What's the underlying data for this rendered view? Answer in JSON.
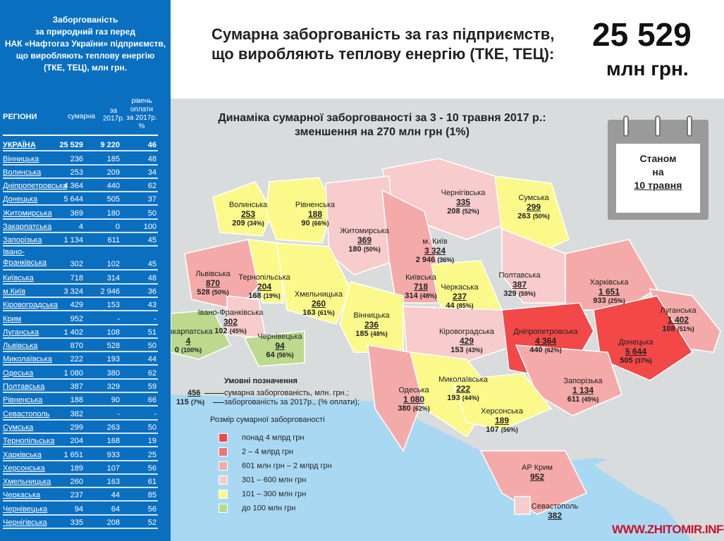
{
  "left_panel": {
    "title_lines": [
      "Заборгованість",
      "за природний газ перед",
      "НАК «Нафтогаз України» підприємств,",
      "що виробляють теплову енергію",
      "(ТКЕ, ТЕЦ), млн грн."
    ],
    "headers": {
      "region": "РЕГІОНИ",
      "total": "сумарна",
      "y2017": "за 2017р.",
      "paid_lines": [
        "рівень",
        "оплати",
        "за 2017р.",
        "%"
      ]
    },
    "rows": [
      {
        "region": "УКРАЇНА",
        "total": "25 529",
        "y2017": "9 220",
        "paid": "46"
      },
      {
        "region": "Вінницька",
        "total": "236",
        "y2017": "185",
        "paid": "48"
      },
      {
        "region": "Волинська",
        "total": "253",
        "y2017": "209",
        "paid": "34"
      },
      {
        "region": "Дніпропетровська",
        "total": "4 364",
        "y2017": "440",
        "paid": "62"
      },
      {
        "region": "Донецька",
        "total": "5 644",
        "y2017": "505",
        "paid": "37"
      },
      {
        "region": "Житомирська",
        "total": "369",
        "y2017": "180",
        "paid": "50"
      },
      {
        "region": "Закарпатська",
        "total": "4",
        "y2017": "0",
        "paid": "100"
      },
      {
        "region": "Запорізька",
        "total": "1 134",
        "y2017": "611",
        "paid": "45"
      },
      {
        "region": "Івано-Франківська",
        "total": "302",
        "y2017": "102",
        "paid": "45"
      },
      {
        "region": "Київська",
        "total": "718",
        "y2017": "314",
        "paid": "48"
      },
      {
        "region": "м.Київ",
        "total": "3 324",
        "y2017": "2 946",
        "paid": "36"
      },
      {
        "region": "Кіровоградська",
        "total": "429",
        "y2017": "153",
        "paid": "43"
      },
      {
        "region": "Крим",
        "total": "952",
        "y2017": "-",
        "paid": "-"
      },
      {
        "region": "Луганська",
        "total": "1 402",
        "y2017": "108",
        "paid": "51"
      },
      {
        "region": "Львівська",
        "total": "870",
        "y2017": "528",
        "paid": "50"
      },
      {
        "region": "Миколаївська",
        "total": "222",
        "y2017": "193",
        "paid": "44"
      },
      {
        "region": "Одеська",
        "total": "1 080",
        "y2017": "380",
        "paid": "62"
      },
      {
        "region": "Полтавська",
        "total": "387",
        "y2017": "329",
        "paid": "59"
      },
      {
        "region": "Рівненська",
        "total": "188",
        "y2017": "90",
        "paid": "66"
      },
      {
        "region": "Севастополь",
        "total": "382",
        "y2017": "-",
        "paid": "-"
      },
      {
        "region": "Сумська",
        "total": "299",
        "y2017": "263",
        "paid": "50"
      },
      {
        "region": "Тернопільська",
        "total": "204",
        "y2017": "168",
        "paid": "19"
      },
      {
        "region": "Харківська",
        "total": "1 651",
        "y2017": "933",
        "paid": "25"
      },
      {
        "region": "Херсонська",
        "total": "189",
        "y2017": "107",
        "paid": "56"
      },
      {
        "region": "Хмельницька",
        "total": "260",
        "y2017": "163",
        "paid": "61"
      },
      {
        "region": "Черкаська",
        "total": "237",
        "y2017": "44",
        "paid": "85"
      },
      {
        "region": "Чернівецька",
        "total": "94",
        "y2017": "64",
        "paid": "56"
      },
      {
        "region": "Чернігівська",
        "total": "335",
        "y2017": "208",
        "paid": "52"
      }
    ]
  },
  "header": {
    "title_lines": [
      "Сумарна заборгованість за газ підприємств,",
      "що виробляють теплову енергію (ТКЕ, ТЕЦ):"
    ],
    "total": "25 529",
    "unit": "млн грн."
  },
  "map": {
    "subtitle_lines": [
      "Динаміка сумарної заборгованості за 3 - 10 травня 2017 р.:",
      "зменшення на 270 млн грн (1%)"
    ],
    "calendar_lines": [
      "Станом",
      "на",
      "10 травня"
    ],
    "category_colors": [
      "#f24848",
      "#f27272",
      "#f5aaaa",
      "#f8cccc",
      "#fbf98a",
      "#bcd98e"
    ],
    "regions": [
      {
        "name": "Волинська",
        "total": "253",
        "y2017": "209",
        "pct": "(34%)",
        "cat": 4
      },
      {
        "name": "Рівненська",
        "total": "188",
        "y2017": "90",
        "pct": "(66%)",
        "cat": 4
      },
      {
        "name": "Чернігівська",
        "total": "335",
        "y2017": "208",
        "pct": "(52%)",
        "cat": 3
      },
      {
        "name": "Житомирська",
        "total": "369",
        "y2017": "180",
        "pct": "(50%)",
        "cat": 3
      },
      {
        "name": "м. Київ",
        "total": "3 324",
        "y2017": "2 946",
        "pct": "(36%)",
        "cat": 1
      },
      {
        "name": "Сумська",
        "total": "299",
        "y2017": "263",
        "pct": "(50%)",
        "cat": 4
      },
      {
        "name": "Львівська",
        "total": "870",
        "y2017": "528",
        "pct": "(50%)",
        "cat": 2
      },
      {
        "name": "Тернопільська",
        "total": "204",
        "y2017": "168",
        "pct": "(19%)",
        "cat": 4
      },
      {
        "name": "Хмельницька",
        "total": "260",
        "y2017": "163",
        "pct": "(61%)",
        "cat": 4
      },
      {
        "name": "Київська",
        "total": "718",
        "y2017": "314",
        "pct": "(48%)",
        "cat": 2
      },
      {
        "name": "Черкаська",
        "total": "237",
        "y2017": "44",
        "pct": "(85%)",
        "cat": 4
      },
      {
        "name": "Полтавська",
        "total": "387",
        "y2017": "329",
        "pct": "(59%)",
        "cat": 3
      },
      {
        "name": "Харківська",
        "total": "1 651",
        "y2017": "933",
        "pct": "(25%)",
        "cat": 2
      },
      {
        "name": "Луганська",
        "total": "1 402",
        "y2017": "108",
        "pct": "(51%)",
        "cat": 2
      },
      {
        "name": "Вінницька",
        "total": "236",
        "y2017": "185",
        "pct": "(48%)",
        "cat": 4
      },
      {
        "name": "Івано-Франківська",
        "total": "302",
        "y2017": "102",
        "pct": "(45%)",
        "cat": 3
      },
      {
        "name": "Закарпатська",
        "total": "4",
        "y2017": "0",
        "pct": "(100%)",
        "cat": 5
      },
      {
        "name": "Чернівецька",
        "total": "94",
        "y2017": "64",
        "pct": "(56%)",
        "cat": 5
      },
      {
        "name": "Кіровоградська",
        "total": "429",
        "y2017": "153",
        "pct": "(43%)",
        "cat": 3
      },
      {
        "name": "Дніпропетровська",
        "total": "4 364",
        "y2017": "440",
        "pct": "(62%)",
        "cat": 0
      },
      {
        "name": "Донецька",
        "total": "5 644",
        "y2017": "505",
        "pct": "(37%)",
        "cat": 0
      },
      {
        "name": "Одеська",
        "total": "1 080",
        "y2017": "380",
        "pct": "(62%)",
        "cat": 2
      },
      {
        "name": "Миколаївська",
        "total": "222",
        "y2017": "193",
        "pct": "(44%)",
        "cat": 4
      },
      {
        "name": "Запорізька",
        "total": "1 134",
        "y2017": "611",
        "pct": "(45%)",
        "cat": 2
      },
      {
        "name": "Херсонська",
        "total": "189",
        "y2017": "107",
        "pct": "(56%)",
        "cat": 4
      },
      {
        "name": "АР Крим",
        "total": "952",
        "y2017": null,
        "pct": null,
        "cat": 2
      },
      {
        "name": "Севастополь",
        "total": "382",
        "y2017": null,
        "pct": null,
        "cat": 3
      }
    ],
    "legend": {
      "title": "Умовні позначення",
      "example_total": "456",
      "example_y2017": "115",
      "example_pct": "(7%)",
      "desc_total": "сумарна заборгованість, млн. грн.;",
      "desc_y2017": "заборгованість за 2017р., (% оплати);",
      "size_title": "Розмір сумарної заборгованості",
      "items": [
        "понад 4 млрд грн",
        "2 – 4 млрд грн",
        "601 млн грн – 2 млрд грн",
        "301 – 600 млн грн",
        "101 – 300 млн грн",
        "до 100 млн грн"
      ]
    },
    "watermark": "WWW.ZHITOMIR.INFO"
  }
}
